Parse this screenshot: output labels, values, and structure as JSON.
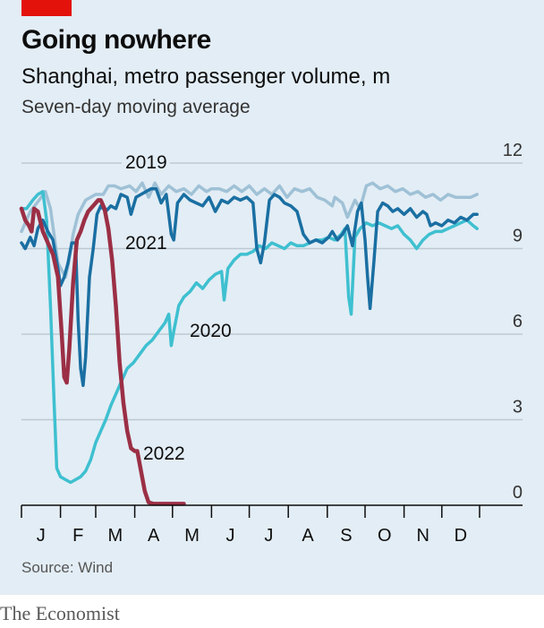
{
  "header": {
    "title": "Going nowhere",
    "subtitle": "Shanghai, metro passenger volume, m",
    "subtitle2": "Seven-day moving average"
  },
  "footer": {
    "source": "Source: Wind",
    "brand": "The Economist"
  },
  "colors": {
    "background": "#e3edf5",
    "accent_red": "#e3120b",
    "2019": "#9fc1d6",
    "2020": "#3ec0d0",
    "2021": "#1a6fa2",
    "2022": "#9b2f45",
    "grid": "#bcc9d3",
    "axis": "#0d0d0d"
  },
  "chart_data": {
    "type": "line",
    "title": "Going nowhere",
    "subtitle": "Shanghai, metro passenger volume, m",
    "ylabel": "Seven-day moving average",
    "x": "day of year",
    "xlim": [
      1,
      365
    ],
    "ylim": [
      0,
      12
    ],
    "yticks": [
      0,
      3,
      6,
      9,
      12
    ],
    "month_labels": [
      "J",
      "F",
      "M",
      "A",
      "M",
      "J",
      "J",
      "A",
      "S",
      "O",
      "N",
      "D"
    ],
    "grid": true,
    "y_axis_side": "right",
    "series": [
      {
        "name": "2019",
        "color": "#9fc1d6",
        "points": [
          [
            1,
            9.6
          ],
          [
            8,
            10.3
          ],
          [
            15,
            10.7
          ],
          [
            20,
            11.0
          ],
          [
            24,
            10.4
          ],
          [
            30,
            8.5
          ],
          [
            36,
            8.0
          ],
          [
            38,
            8.4
          ],
          [
            42,
            9.5
          ],
          [
            46,
            10.2
          ],
          [
            52,
            10.7
          ],
          [
            60,
            10.9
          ],
          [
            66,
            10.9
          ],
          [
            70,
            11.2
          ],
          [
            75,
            11.2
          ],
          [
            80,
            11.1
          ],
          [
            87,
            11.2
          ],
          [
            92,
            11.0
          ],
          [
            97,
            11.3
          ],
          [
            102,
            10.8
          ],
          [
            107,
            11.3
          ],
          [
            112,
            10.9
          ],
          [
            118,
            11.2
          ],
          [
            124,
            11.0
          ],
          [
            130,
            11.1
          ],
          [
            136,
            10.9
          ],
          [
            142,
            11.2
          ],
          [
            148,
            11.0
          ],
          [
            152,
            11.1
          ],
          [
            158,
            11.1
          ],
          [
            164,
            11.0
          ],
          [
            170,
            11.2
          ],
          [
            176,
            11.0
          ],
          [
            182,
            11.2
          ],
          [
            188,
            10.9
          ],
          [
            194,
            11.1
          ],
          [
            200,
            10.9
          ],
          [
            206,
            11.2
          ],
          [
            212,
            10.8
          ],
          [
            218,
            11.1
          ],
          [
            224,
            11.0
          ],
          [
            230,
            11.1
          ],
          [
            236,
            10.8
          ],
          [
            242,
            10.7
          ],
          [
            248,
            10.5
          ],
          [
            250,
            10.8
          ],
          [
            256,
            10.6
          ],
          [
            260,
            10.1
          ],
          [
            266,
            10.7
          ],
          [
            270,
            10.4
          ],
          [
            275,
            11.2
          ],
          [
            280,
            11.3
          ],
          [
            286,
            11.1
          ],
          [
            292,
            11.2
          ],
          [
            298,
            11.0
          ],
          [
            304,
            11.1
          ],
          [
            310,
            10.9
          ],
          [
            316,
            11.0
          ],
          [
            322,
            10.8
          ],
          [
            328,
            10.9
          ],
          [
            334,
            10.7
          ],
          [
            340,
            10.9
          ],
          [
            346,
            10.8
          ],
          [
            352,
            10.8
          ],
          [
            358,
            10.8
          ],
          [
            363,
            10.9
          ]
        ]
      },
      {
        "name": "2020",
        "color": "#3ec0d0",
        "points": [
          [
            1,
            10.4
          ],
          [
            5,
            10.4
          ],
          [
            10,
            10.7
          ],
          [
            14,
            10.9
          ],
          [
            18,
            11.0
          ],
          [
            21,
            10.0
          ],
          [
            24,
            7.0
          ],
          [
            27,
            3.5
          ],
          [
            29,
            1.3
          ],
          [
            32,
            1.0
          ],
          [
            36,
            0.9
          ],
          [
            40,
            0.8
          ],
          [
            44,
            0.9
          ],
          [
            48,
            1.0
          ],
          [
            52,
            1.2
          ],
          [
            56,
            1.6
          ],
          [
            60,
            2.2
          ],
          [
            64,
            2.6
          ],
          [
            68,
            3.0
          ],
          [
            72,
            3.5
          ],
          [
            76,
            3.9
          ],
          [
            80,
            4.3
          ],
          [
            85,
            4.8
          ],
          [
            90,
            5.0
          ],
          [
            95,
            5.3
          ],
          [
            100,
            5.6
          ],
          [
            105,
            5.8
          ],
          [
            110,
            6.1
          ],
          [
            115,
            6.4
          ],
          [
            118,
            6.7
          ],
          [
            120,
            5.6
          ],
          [
            122,
            6.1
          ],
          [
            126,
            7.0
          ],
          [
            130,
            7.3
          ],
          [
            135,
            7.5
          ],
          [
            140,
            7.8
          ],
          [
            145,
            7.6
          ],
          [
            150,
            7.9
          ],
          [
            155,
            8.1
          ],
          [
            160,
            8.2
          ],
          [
            162,
            7.2
          ],
          [
            165,
            8.3
          ],
          [
            170,
            8.6
          ],
          [
            175,
            8.8
          ],
          [
            180,
            8.8
          ],
          [
            185,
            8.9
          ],
          [
            190,
            9.1
          ],
          [
            195,
            9.0
          ],
          [
            200,
            9.2
          ],
          [
            205,
            9.1
          ],
          [
            210,
            9.0
          ],
          [
            215,
            9.2
          ],
          [
            220,
            9.1
          ],
          [
            225,
            9.1
          ],
          [
            230,
            9.2
          ],
          [
            235,
            9.3
          ],
          [
            240,
            9.3
          ],
          [
            245,
            9.4
          ],
          [
            250,
            9.3
          ],
          [
            255,
            9.5
          ],
          [
            258,
            9.7
          ],
          [
            261,
            7.3
          ],
          [
            263,
            6.7
          ],
          [
            266,
            9.4
          ],
          [
            270,
            9.7
          ],
          [
            275,
            9.9
          ],
          [
            280,
            9.8
          ],
          [
            285,
            9.9
          ],
          [
            290,
            9.8
          ],
          [
            295,
            9.7
          ],
          [
            300,
            9.8
          ],
          [
            305,
            9.5
          ],
          [
            310,
            9.3
          ],
          [
            315,
            9.0
          ],
          [
            320,
            9.3
          ],
          [
            325,
            9.5
          ],
          [
            330,
            9.6
          ],
          [
            335,
            9.6
          ],
          [
            340,
            9.7
          ],
          [
            345,
            9.8
          ],
          [
            350,
            9.9
          ],
          [
            355,
            10.0
          ],
          [
            360,
            9.8
          ],
          [
            363,
            9.7
          ]
        ]
      },
      {
        "name": "2021",
        "color": "#1a6fa2",
        "points": [
          [
            1,
            9.2
          ],
          [
            4,
            9.0
          ],
          [
            8,
            9.4
          ],
          [
            11,
            9.1
          ],
          [
            14,
            9.7
          ],
          [
            18,
            10.0
          ],
          [
            22,
            9.6
          ],
          [
            26,
            9.3
          ],
          [
            30,
            8.3
          ],
          [
            32,
            7.7
          ],
          [
            35,
            8.0
          ],
          [
            38,
            8.5
          ],
          [
            41,
            9.2
          ],
          [
            44,
            9.2
          ],
          [
            46,
            6.5
          ],
          [
            48,
            4.8
          ],
          [
            50,
            4.2
          ],
          [
            52,
            5.2
          ],
          [
            55,
            8.0
          ],
          [
            58,
            9.0
          ],
          [
            61,
            10.2
          ],
          [
            64,
            10.5
          ],
          [
            68,
            10.3
          ],
          [
            72,
            10.5
          ],
          [
            76,
            10.4
          ],
          [
            80,
            10.9
          ],
          [
            85,
            10.8
          ],
          [
            88,
            10.2
          ],
          [
            92,
            10.8
          ],
          [
            96,
            10.9
          ],
          [
            100,
            11.0
          ],
          [
            104,
            11.1
          ],
          [
            108,
            11.1
          ],
          [
            112,
            10.6
          ],
          [
            116,
            10.9
          ],
          [
            120,
            9.5
          ],
          [
            122,
            9.3
          ],
          [
            125,
            10.6
          ],
          [
            130,
            10.9
          ],
          [
            135,
            10.7
          ],
          [
            140,
            10.6
          ],
          [
            145,
            10.5
          ],
          [
            150,
            10.8
          ],
          [
            155,
            10.3
          ],
          [
            160,
            10.7
          ],
          [
            165,
            10.6
          ],
          [
            170,
            10.8
          ],
          [
            175,
            10.7
          ],
          [
            180,
            10.8
          ],
          [
            185,
            10.6
          ],
          [
            188,
            9.0
          ],
          [
            191,
            8.5
          ],
          [
            194,
            9.2
          ],
          [
            198,
            10.7
          ],
          [
            202,
            10.9
          ],
          [
            206,
            10.8
          ],
          [
            210,
            10.6
          ],
          [
            215,
            10.5
          ],
          [
            220,
            10.3
          ],
          [
            225,
            9.5
          ],
          [
            230,
            9.2
          ],
          [
            235,
            9.3
          ],
          [
            240,
            9.2
          ],
          [
            245,
            9.4
          ],
          [
            248,
            9.6
          ],
          [
            252,
            9.3
          ],
          [
            256,
            9.5
          ],
          [
            260,
            9.8
          ],
          [
            264,
            9.1
          ],
          [
            268,
            10.3
          ],
          [
            271,
            10.6
          ],
          [
            274,
            9.3
          ],
          [
            276,
            8.0
          ],
          [
            278,
            6.9
          ],
          [
            281,
            8.5
          ],
          [
            284,
            10.3
          ],
          [
            288,
            10.6
          ],
          [
            292,
            10.5
          ],
          [
            296,
            10.3
          ],
          [
            300,
            10.4
          ],
          [
            305,
            10.2
          ],
          [
            310,
            10.4
          ],
          [
            315,
            10.1
          ],
          [
            320,
            10.3
          ],
          [
            323,
            10.2
          ],
          [
            326,
            9.8
          ],
          [
            330,
            9.9
          ],
          [
            335,
            9.8
          ],
          [
            340,
            10.0
          ],
          [
            345,
            9.9
          ],
          [
            350,
            10.1
          ],
          [
            355,
            10.0
          ],
          [
            360,
            10.2
          ],
          [
            363,
            10.2
          ]
        ]
      },
      {
        "name": "2022",
        "color": "#9b2f45",
        "points": [
          [
            1,
            10.4
          ],
          [
            4,
            10.0
          ],
          [
            7,
            9.8
          ],
          [
            9,
            9.6
          ],
          [
            11,
            10.4
          ],
          [
            14,
            10.3
          ],
          [
            18,
            9.6
          ],
          [
            22,
            9.2
          ],
          [
            26,
            8.8
          ],
          [
            30,
            8.0
          ],
          [
            33,
            6.0
          ],
          [
            35,
            4.5
          ],
          [
            37,
            4.3
          ],
          [
            39,
            5.5
          ],
          [
            42,
            7.8
          ],
          [
            45,
            9.3
          ],
          [
            48,
            9.6
          ],
          [
            51,
            10.0
          ],
          [
            54,
            10.3
          ],
          [
            58,
            10.5
          ],
          [
            62,
            10.7
          ],
          [
            64,
            10.7
          ],
          [
            67,
            10.4
          ],
          [
            70,
            9.7
          ],
          [
            73,
            8.6
          ],
          [
            76,
            7.0
          ],
          [
            79,
            5.0
          ],
          [
            82,
            3.6
          ],
          [
            85,
            2.6
          ],
          [
            88,
            2.0
          ],
          [
            91,
            1.9
          ],
          [
            93,
            1.9
          ],
          [
            96,
            1.2
          ],
          [
            99,
            0.5
          ],
          [
            102,
            0.1
          ],
          [
            106,
            0.05
          ],
          [
            112,
            0.05
          ],
          [
            118,
            0.05
          ],
          [
            124,
            0.05
          ],
          [
            130,
            0.05
          ]
        ]
      }
    ],
    "annotations": [
      {
        "text": "2019",
        "near": "top, above 2019 line near late Feb"
      },
      {
        "text": "2021",
        "near": "below 2021 line in early April"
      },
      {
        "text": "2020",
        "near": "right of 2020 line in early May"
      },
      {
        "text": "2022",
        "near": "right of 2022 line in April"
      }
    ]
  }
}
